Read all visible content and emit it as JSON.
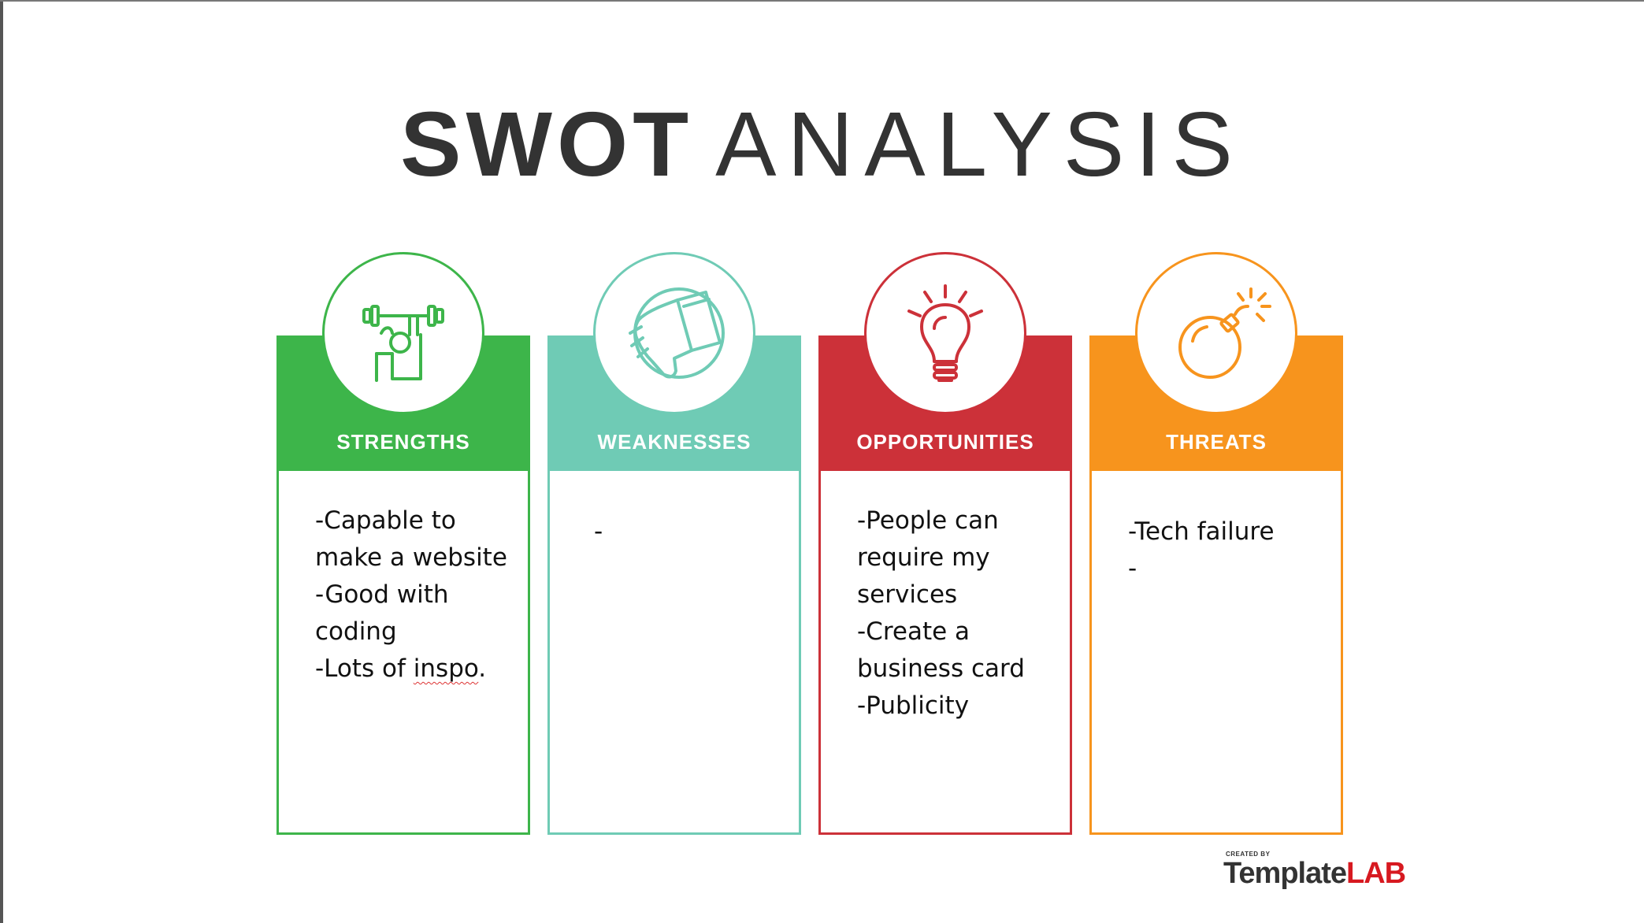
{
  "title": {
    "bold": "SWOT",
    "light": "ANALYSIS"
  },
  "colors": {
    "strengths": "#3db54a",
    "weaknesses": "#6fcbb5",
    "opportunities": "#cc3139",
    "threats": "#f7941d"
  },
  "cards": [
    {
      "label": "STRENGTHS",
      "icon": "weightlifter-icon",
      "lines": [
        "-Capable to make a website",
        "-Good with coding",
        "-Lots of "
      ],
      "last_word": "inspo",
      "last_suffix": "."
    },
    {
      "label": "WEAKNESSES",
      "icon": "thumbs-down-icon",
      "text": "-"
    },
    {
      "label": "OPPORTUNITIES",
      "icon": "lightbulb-icon",
      "text": "-People can require my services\n-Create a business card\n-Publicity"
    },
    {
      "label": "THREATS",
      "icon": "bomb-icon",
      "text": "-Tech failure\n-"
    }
  ],
  "logo": {
    "small": "CREATED BY",
    "part1": "Template",
    "part2": "LAB"
  }
}
